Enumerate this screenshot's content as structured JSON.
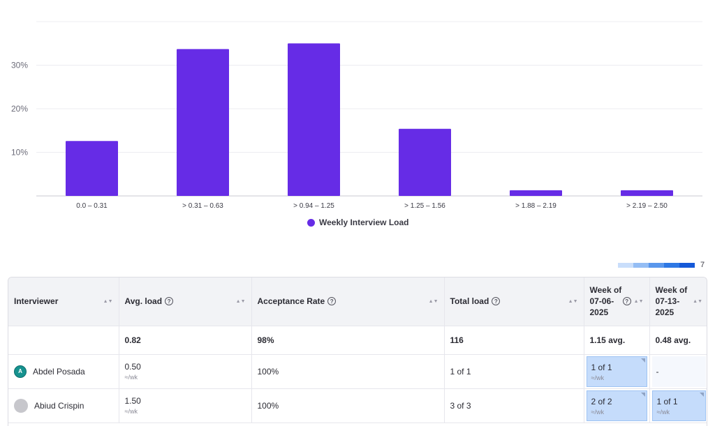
{
  "chart_data": {
    "type": "bar",
    "categories": [
      "0.0 – 0.31",
      "> 0.31 – 0.63",
      "> 0.94 – 1.25",
      "> 1.25 – 1.56",
      "> 1.88 – 2.19",
      "> 2.19 – 2.50"
    ],
    "series": [
      {
        "name": "Weekly Interview Load",
        "values": [
          12.6,
          33.7,
          35.0,
          15.4,
          1.3,
          1.3
        ]
      }
    ],
    "y_ticks": [
      "10%",
      "20%",
      "30%"
    ],
    "y_tick_values": [
      10,
      20,
      30
    ],
    "ylim": [
      0,
      40
    ],
    "grid": true,
    "legend_position": "bottom-center",
    "bar_color": "#662ce6"
  },
  "legend": {
    "label": "Weekly Interview Load"
  },
  "heat_scale": {
    "max_label": "7",
    "colors": [
      "#f6f8fc",
      "#c9defb",
      "#94bdf4",
      "#5a97ec",
      "#2e78e4",
      "#1559d8"
    ]
  },
  "table": {
    "headers": {
      "interviewer": "Interviewer",
      "avg_load": "Avg. load",
      "acceptance": "Acceptance Rate",
      "total_load": "Total load",
      "week1_line1": "Week of",
      "week1_line2": "07-06-",
      "week1_line3": "2025",
      "week2_line1": "Week of",
      "week2_line2": "07-13-",
      "week2_line3": "2025"
    },
    "average_row": {
      "avg_load": "0.82",
      "acceptance": "98%",
      "total_load": "116",
      "week1": "1.15 avg.",
      "week2": "0.48 avg."
    },
    "rows": [
      {
        "initial": "A",
        "name": "Abdel Posada",
        "avg_load": "0.50",
        "avg_unit": "≈/wk",
        "acceptance": "100%",
        "total_load": "1 of 1",
        "week1": "1 of 1",
        "week1_sub": "≈/wk",
        "week2": "-",
        "week2_sub": ""
      },
      {
        "initial": "",
        "name": "Abiud Crispin",
        "avg_load": "1.50",
        "avg_unit": "≈/wk",
        "acceptance": "100%",
        "total_load": "3 of 3",
        "week1": "2 of 2",
        "week1_sub": "≈/wk",
        "week2": "1 of 1",
        "week2_sub": "≈/wk"
      }
    ]
  }
}
